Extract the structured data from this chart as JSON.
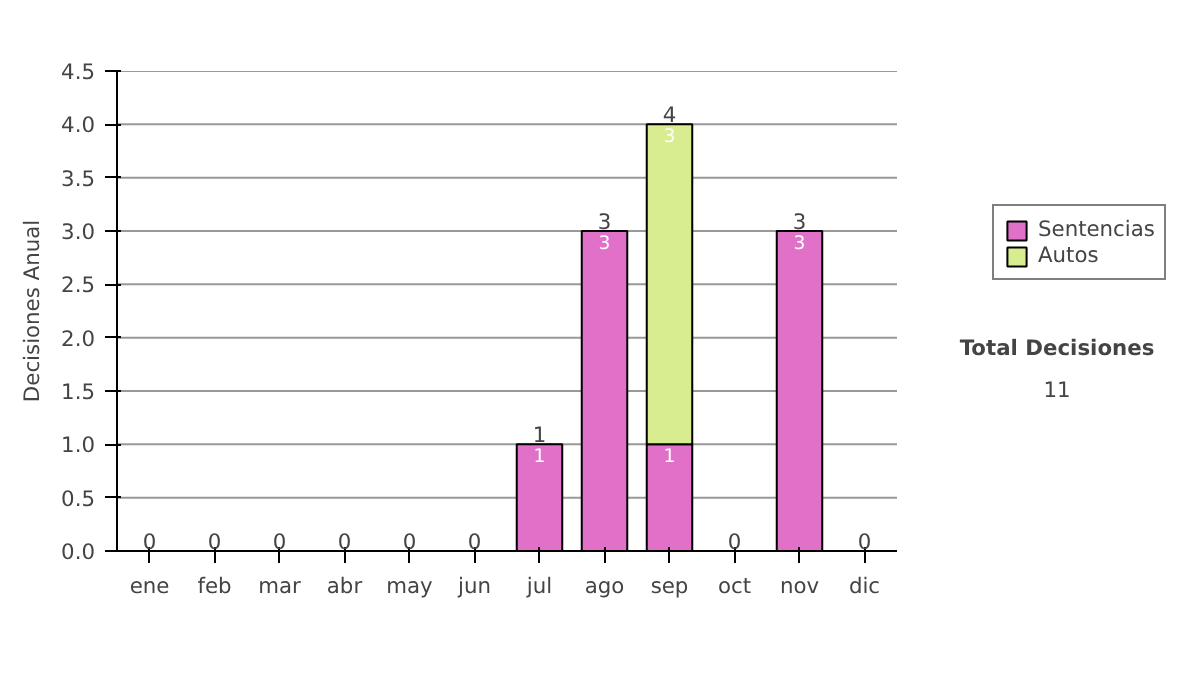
{
  "chart_data": {
    "type": "bar",
    "stacked": true,
    "ylabel": "Decisiones Anual",
    "categories": [
      "ene",
      "feb",
      "mar",
      "abr",
      "may",
      "jun",
      "jul",
      "ago",
      "sep",
      "oct",
      "nov",
      "dic"
    ],
    "series": [
      {
        "name": "Sentencias",
        "color": "#e070c8",
        "values": [
          0,
          0,
          0,
          0,
          0,
          0,
          1,
          3,
          1,
          0,
          3,
          0
        ],
        "value_labels": [
          null,
          null,
          null,
          null,
          null,
          null,
          "1",
          "3",
          "1",
          null,
          "3",
          null
        ]
      },
      {
        "name": "Autos",
        "color": "#d8ec90",
        "values": [
          0,
          0,
          0,
          0,
          0,
          0,
          0,
          0,
          3,
          0,
          0,
          0
        ],
        "value_labels": [
          null,
          null,
          null,
          null,
          null,
          null,
          null,
          null,
          "3",
          null,
          null,
          null
        ]
      }
    ],
    "totals": [
      "0",
      "0",
      "0",
      "0",
      "0",
      "0",
      "1",
      "3",
      "4",
      "0",
      "3",
      "0"
    ],
    "ylim": [
      0,
      4.5
    ],
    "yticks": [
      {
        "value": 0,
        "label": "0.0"
      },
      {
        "value": 0.5,
        "label": "0.5"
      },
      {
        "value": 1,
        "label": "1.0"
      },
      {
        "value": 1.5,
        "label": "1.5"
      },
      {
        "value": 2,
        "label": "2.0"
      },
      {
        "value": 2.5,
        "label": "2.5"
      },
      {
        "value": 3,
        "label": "3.0"
      },
      {
        "value": 3.5,
        "label": "3.5"
      },
      {
        "value": 4,
        "label": "4.0"
      },
      {
        "value": 4.5,
        "label": "4.5"
      }
    ],
    "grid": "y",
    "legend": "right",
    "annotations": [
      "Total Decisiones",
      "11"
    ]
  }
}
